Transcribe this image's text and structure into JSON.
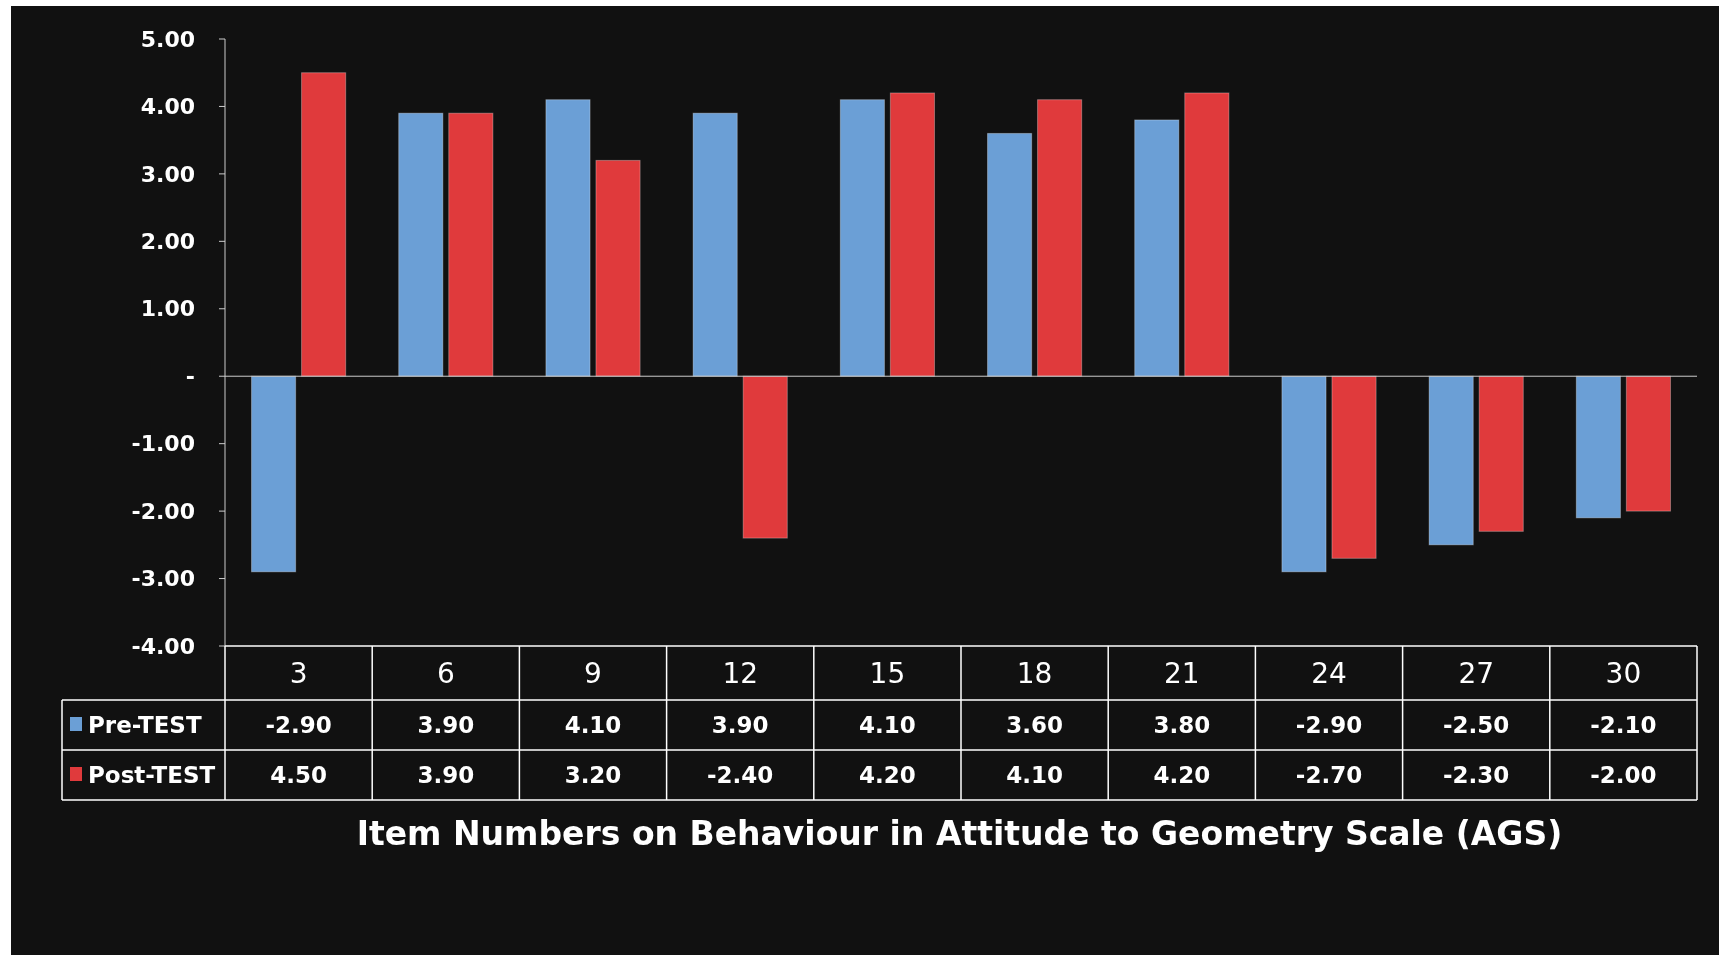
{
  "chart_data": {
    "type": "bar",
    "xlabel": "Item Numbers on Behaviour in Attitude to Geometry Scale (AGS)",
    "categories": [
      "3",
      "6",
      "9",
      "12",
      "15",
      "18",
      "21",
      "24",
      "27",
      "30"
    ],
    "series": [
      {
        "name": "Pre-TEST",
        "color": "#6b9fd6",
        "values": [
          -2.9,
          3.9,
          4.1,
          3.9,
          4.1,
          3.6,
          3.8,
          -2.9,
          -2.5,
          -2.1
        ],
        "value_labels": [
          "-2.90",
          "3.90",
          "4.10",
          "3.90",
          "4.10",
          "3.60",
          "3.80",
          "-2.90",
          "-2.50",
          "-2.10"
        ]
      },
      {
        "name": "Post-TEST",
        "color": "#e03a3c",
        "values": [
          4.5,
          3.9,
          3.2,
          -2.4,
          4.2,
          4.1,
          4.2,
          -2.7,
          -2.3,
          -2.0
        ],
        "value_labels": [
          "4.50",
          "3.90",
          "3.20",
          "-2.40",
          "4.20",
          "4.10",
          "4.20",
          "-2.70",
          "-2.30",
          "-2.00"
        ]
      }
    ],
    "ylim": [
      -4,
      5
    ],
    "yticks": [
      {
        "value": 5,
        "label": "5.00"
      },
      {
        "value": 4,
        "label": "4.00"
      },
      {
        "value": 3,
        "label": "3.00"
      },
      {
        "value": 2,
        "label": "2.00"
      },
      {
        "value": 1,
        "label": "1.00"
      },
      {
        "value": 0,
        "label": "-"
      },
      {
        "value": -1,
        "label": "-1.00"
      },
      {
        "value": -2,
        "label": "-2.00"
      },
      {
        "value": -3,
        "label": "-3.00"
      },
      {
        "value": -4,
        "label": "-4.00"
      }
    ],
    "legend": "bottom"
  }
}
